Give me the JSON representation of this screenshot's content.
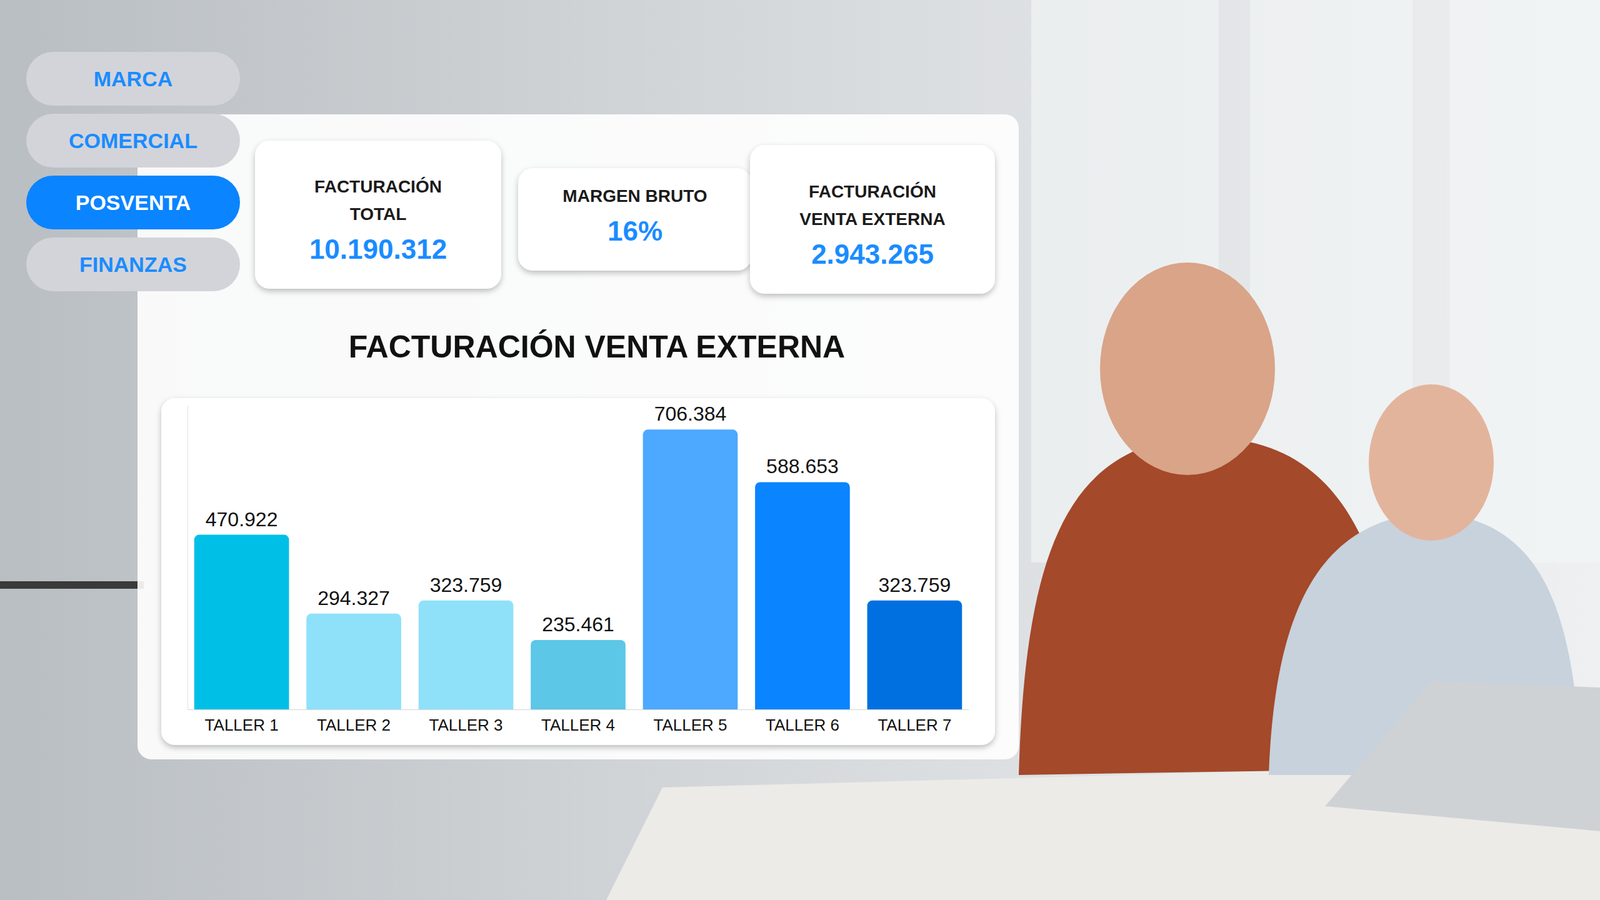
{
  "nav": {
    "items": [
      "MARCA",
      "COMERCIAL",
      "POSVENTA",
      "FINANZAS"
    ],
    "active": "POSVENTA"
  },
  "kpis": [
    {
      "title": [
        "FACTURACIÓN",
        "TOTAL"
      ],
      "value": "10.190.312"
    },
    {
      "title": [
        "MARGEN BRUTO"
      ],
      "value": "16%"
    },
    {
      "title": [
        "FACTURACIÓN",
        "VENTA EXTERNA"
      ],
      "value": "2.943.265"
    }
  ],
  "chart_data": {
    "type": "bar",
    "title": "FACTURACIÓN VENTA EXTERNA",
    "categories": [
      "TALLER 1",
      "TALLER 2",
      "TALLER 3",
      "TALLER 4",
      "TALLER 5",
      "TALLER 6",
      "TALLER 7"
    ],
    "values": [
      470922,
      294327,
      323759,
      235461,
      706384,
      588653,
      323759
    ],
    "value_labels": [
      "470.922",
      "294.327",
      "323.759",
      "235.461",
      "706.384",
      "588.653",
      "323.759"
    ],
    "colors": [
      "#00bfe6",
      "#8fe1fa",
      "#8fe1fa",
      "#5cc7e6",
      "#4da8ff",
      "#0a84ff",
      "#0070e0"
    ],
    "ylim": [
      80000,
      760000
    ],
    "data_labels": true,
    "tick_labels": "x"
  }
}
